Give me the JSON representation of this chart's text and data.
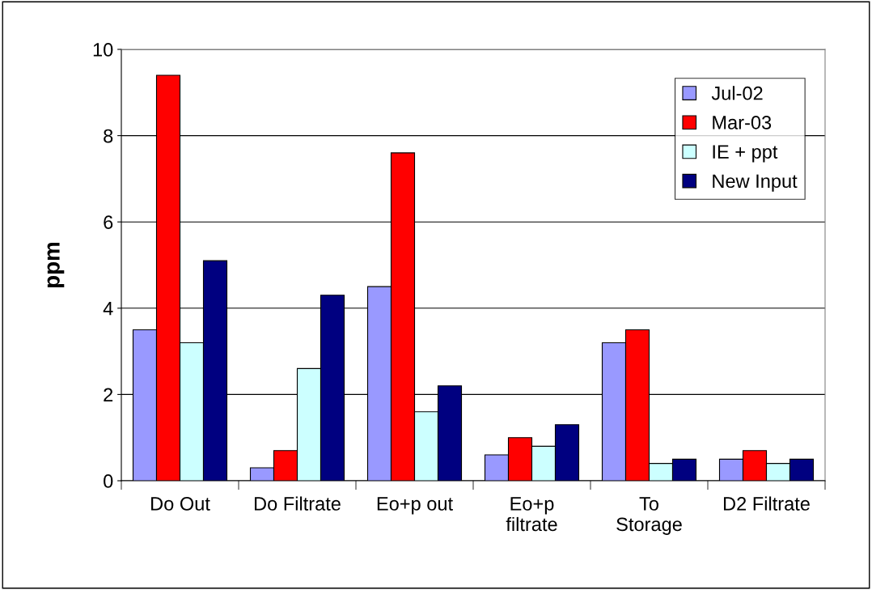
{
  "chart_data": {
    "type": "bar",
    "ylabel": "ppm",
    "categories": [
      "Do Out",
      "Do Filtrate",
      "Eo+p out",
      "Eo+p\nfiltrate",
      "To\nStorage",
      "D2 Filtrate"
    ],
    "series": [
      {
        "name": "Jul-02",
        "color": "#9999ff",
        "values": [
          3.5,
          0.3,
          4.5,
          0.6,
          3.2,
          0.5
        ]
      },
      {
        "name": "Mar-03",
        "color": "#ff0000",
        "values": [
          9.4,
          0.7,
          7.6,
          1.0,
          3.5,
          0.7
        ]
      },
      {
        "name": "IE + ppt",
        "color": "#ccffff",
        "values": [
          3.2,
          2.6,
          1.6,
          0.8,
          0.4,
          0.4
        ]
      },
      {
        "name": "New Input",
        "color": "#000080",
        "values": [
          5.1,
          4.3,
          2.2,
          1.3,
          0.5,
          0.5
        ]
      }
    ],
    "ylim": [
      0,
      10
    ],
    "yticks": [
      0,
      2,
      4,
      6,
      8,
      10
    ],
    "grid": "y",
    "legend": "top right"
  }
}
